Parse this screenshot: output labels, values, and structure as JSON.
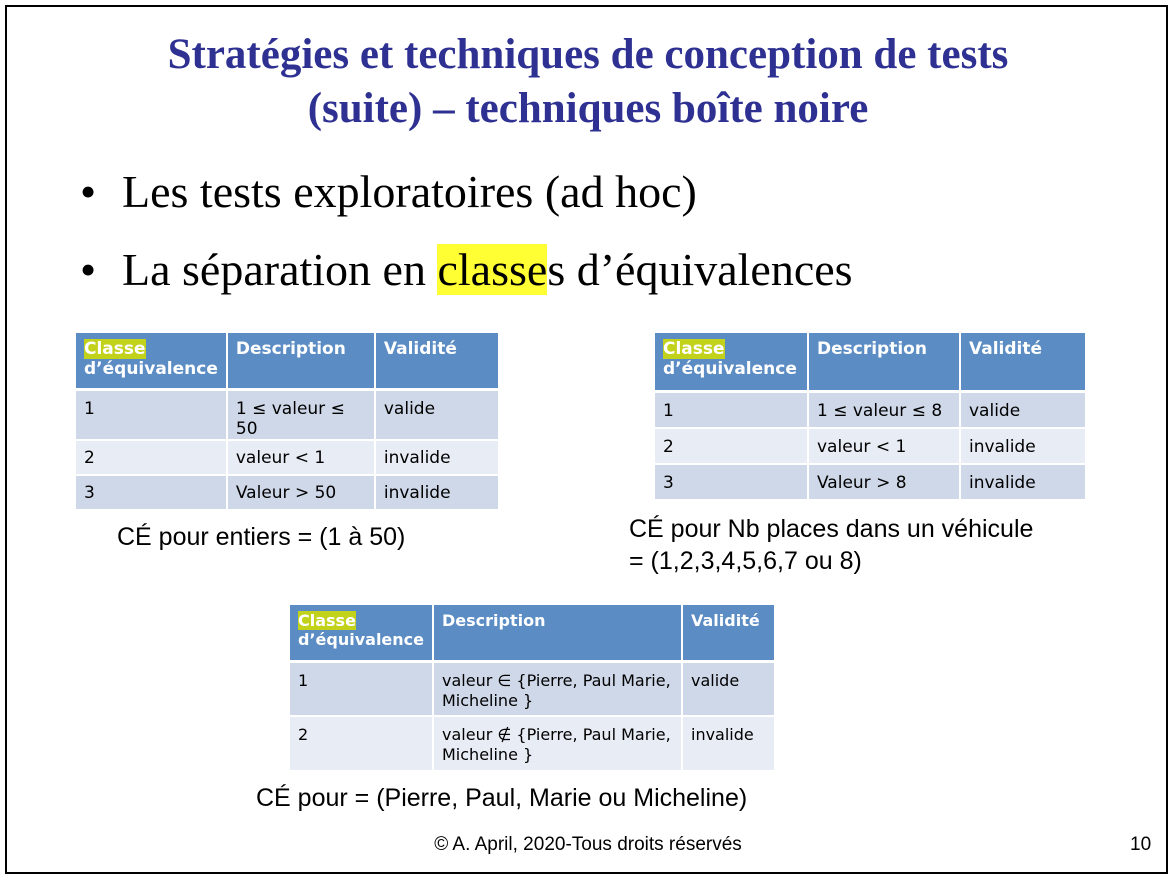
{
  "title": {
    "line1": "Stratégies et techniques de conception de tests",
    "line2": "(suite) – techniques boîte noire"
  },
  "bullets": {
    "item1": "Les tests exploratoires (ad hoc)",
    "item2_before": "La séparation en ",
    "item2_highlight": "classe",
    "item2_after": "s d’équivalences"
  },
  "colors": {
    "title": "#2e3192",
    "highlight": "#ffff33",
    "table_header": "#5b8cc4",
    "row_odd": "#cfd8e8",
    "row_even": "#e8ecf4"
  },
  "table1": {
    "header": {
      "classe": "Classe",
      "equivalence": "d’équivalence",
      "description": "Description",
      "validite": "Validité"
    },
    "rows": [
      {
        "num": "1",
        "desc": "1 ≤ valeur ≤ 50",
        "validite": "valide"
      },
      {
        "num": "2",
        "desc": "valeur < 1",
        "validite": "invalide"
      },
      {
        "num": "3",
        "desc": "Valeur > 50",
        "validite": "invalide"
      }
    ],
    "caption": "CÉ pour entiers = (1 à 50)"
  },
  "table2": {
    "header": {
      "classe": "Classe",
      "equivalence": "d’équivalence",
      "description": "Description",
      "validite": "Validité"
    },
    "rows": [
      {
        "num": "1",
        "desc": "1 ≤ valeur ≤ 8",
        "validite": "valide"
      },
      {
        "num": "2",
        "desc": "valeur < 1",
        "validite": "invalide"
      },
      {
        "num": "3",
        "desc": "Valeur > 8",
        "validite": "invalide"
      }
    ],
    "caption_line1": "CÉ pour Nb places dans un véhicule",
    "caption_line2": "= (1,2,3,4,5,6,7 ou 8)"
  },
  "table3": {
    "header": {
      "classe": "Classe",
      "equivalence": "d’équivalence",
      "description": "Description",
      "validite": "Validité"
    },
    "rows": [
      {
        "num": "1",
        "desc_line1": "valeur ∈ {Pierre, Paul Marie,",
        "desc_line2": "Micheline }",
        "validite": "valide"
      },
      {
        "num": "2",
        "desc_line1": "valeur ∉ {Pierre, Paul Marie,",
        "desc_line2": "Micheline }",
        "validite": "invalide"
      }
    ],
    "caption": "CÉ pour = (Pierre, Paul, Marie ou Micheline)"
  },
  "footer": {
    "copyright": "© A. April, 2020-Tous droits réservés",
    "page": "10"
  }
}
